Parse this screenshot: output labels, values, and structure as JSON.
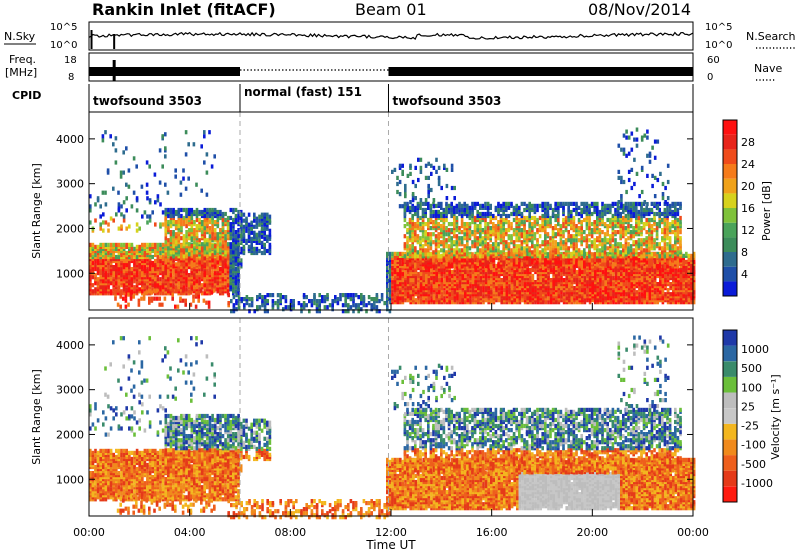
{
  "header": {
    "title": "Rankin Inlet (fitACF)",
    "beam": "Beam 01",
    "date": "08/Nov/2014"
  },
  "labels": {
    "nsky": "N.Sky",
    "freq": "Freq.",
    "freq_unit": "[MHz]",
    "cpid": "CPID",
    "nsearch": "N.Search",
    "nave": "Nave",
    "noise_ticks_left": [
      "10^5",
      "10^0"
    ],
    "noise_ticks_right": [
      "10^5",
      "10^0"
    ],
    "freq_ticks": [
      "18",
      "8"
    ],
    "nave_ticks": [
      "60",
      "0"
    ]
  },
  "cpid_segments": [
    {
      "label": "twofsound 3503",
      "start_hr": 0,
      "end_hr": 6.0
    },
    {
      "label": "normal (fast) 151",
      "start_hr": 6.0,
      "end_hr": 11.9
    },
    {
      "label": "twofsound 3503",
      "start_hr": 11.9,
      "end_hr": 24
    }
  ],
  "chart_data": [
    {
      "type": "heatmap",
      "quantity": "power",
      "ylabel": "Slant Range [km]",
      "ylim": [
        180,
        4600
      ],
      "yticks": [
        "1000",
        "2000",
        "3000",
        "4000"
      ],
      "xlim": [
        0,
        24
      ],
      "colorbar_label": "Power [dB]",
      "colorbar_ticks": [
        "4",
        "8",
        "12",
        "16",
        "20",
        "24",
        "28"
      ],
      "colors": [
        "#0a1bd8",
        "#1f4fa8",
        "#2e6c8e",
        "#3c8c5a",
        "#4aa35a",
        "#7fc23a",
        "#d7d21c",
        "#f0a21a",
        "#f57b1b",
        "#ef4b1b",
        "#e8241a",
        "#ff1010"
      ]
    },
    {
      "type": "heatmap",
      "quantity": "velocity",
      "ylabel": "Slant Range [km]",
      "ylim": [
        180,
        4600
      ],
      "yticks": [
        "1000",
        "2000",
        "3000",
        "4000"
      ],
      "xlim": [
        0,
        24
      ],
      "colorbar_label": "Velocity [m s⁻¹]",
      "colorbar_ticks": [
        "1000",
        "500",
        "100",
        "25",
        "-25",
        "-100",
        "-500",
        "-1000"
      ],
      "colors": [
        "#1f39a8",
        "#2b67a3",
        "#3a8b6b",
        "#6bbf3a",
        "#bdbdbd",
        "#c7c7c7",
        "#f3b61f",
        "#f08a1c",
        "#ee5f1c",
        "#e53a19",
        "#ff1b10"
      ]
    }
  ],
  "xaxis": {
    "label": "Time UT",
    "ticks": [
      "00:00",
      "04:00",
      "08:00",
      "12:00",
      "16:00",
      "20:00",
      "00:00"
    ]
  }
}
